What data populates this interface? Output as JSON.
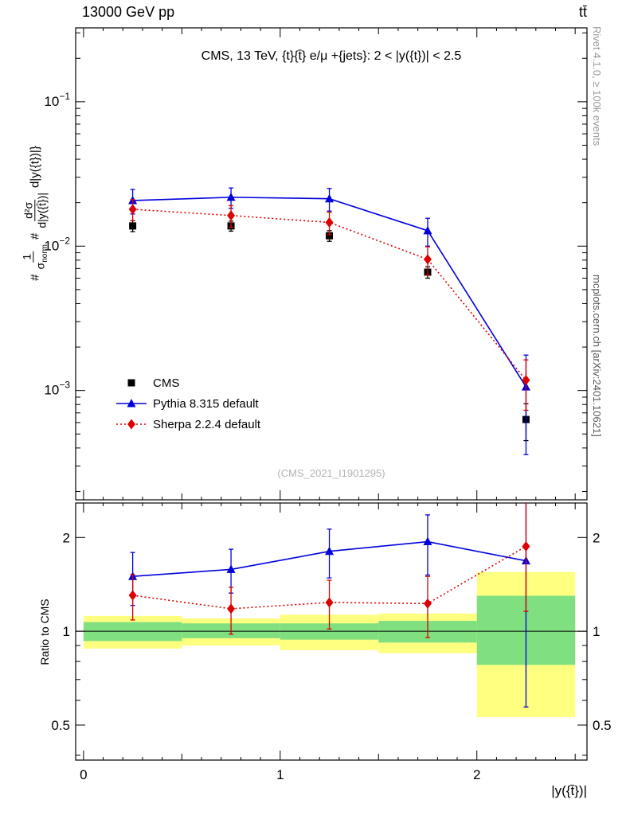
{
  "header": {
    "left": "13000 GeV pp",
    "right": "tt̄"
  },
  "side_notes": {
    "top": "Rivet 4.1.0, ≥ 100k events",
    "bottom": "mcplots.cern.ch [arXiv:2401.10621]"
  },
  "watermark": "(CMS_2021_I1901295)",
  "chart_data": {
    "type": "line",
    "title": "CMS, 13 TeV, {t}{t̄} e/μ +{jets}: 2 < |y({t})| < 2.5",
    "x_label": "|y({t̄})|",
    "ratio_label": "Ratio to CMS",
    "y_label": {
      "hash1": "#",
      "frac1_num": "1",
      "frac1_den_base": "σ",
      "frac1_den_sub": "norm",
      "hash2": "#",
      "frac2_num": "d²σ",
      "frac2_den": "d|y({t̄})|",
      "suffix": "d|y({t})|}"
    },
    "x": [
      0.25,
      0.75,
      1.25,
      1.75,
      2.25
    ],
    "bin_edges": [
      0.0,
      0.5,
      1.0,
      1.5,
      2.0,
      2.5
    ],
    "x_range": [
      -0.04,
      2.56
    ],
    "x_ticks_labeled": [
      0,
      1,
      2
    ],
    "main": {
      "y_scale": "log",
      "y_range": [
        0.000175,
        0.325
      ],
      "y_ticks_labeled_exponents": [
        -1,
        -2,
        -3
      ]
    },
    "ratio": {
      "y_scale": "log",
      "y_range": [
        0.386,
        2.58
      ],
      "y_ticks_labeled": [
        0.5,
        1,
        2
      ],
      "y_ticks_minor": [
        0.4,
        0.6,
        0.7,
        0.8,
        0.9
      ]
    },
    "series": [
      {
        "name": "CMS",
        "marker": "square",
        "color": "#000000",
        "line": "none",
        "is_reference": true,
        "values": [
          0.0138,
          0.0138,
          0.0118,
          0.0066,
          0.00063
        ],
        "errors": [
          0.0012,
          0.0011,
          0.001,
          0.0006,
          0.00018
        ]
      },
      {
        "name": "Pythia 8.315 default",
        "marker": "triangle",
        "color": "#0000dd",
        "line": "solid",
        "is_reference": false,
        "values": [
          0.0207,
          0.0218,
          0.0213,
          0.0128,
          0.00106
        ],
        "errors": [
          0.004,
          0.0035,
          0.0038,
          0.0028,
          0.0007
        ]
      },
      {
        "name": "Sherpa 2.2.4 default",
        "marker": "diamond",
        "color": "#dd0000",
        "line": "dotted",
        "is_reference": false,
        "values": [
          0.018,
          0.0163,
          0.0146,
          0.0081,
          0.00118
        ],
        "errors": [
          0.003,
          0.0028,
          0.0026,
          0.0018,
          0.00045
        ]
      }
    ],
    "ratio_bands": {
      "yellow": {
        "color": "#ffff80",
        "lo": [
          0.88,
          0.9,
          0.87,
          0.85,
          0.53
        ],
        "hi": [
          1.12,
          1.1,
          1.13,
          1.14,
          1.55
        ]
      },
      "green": {
        "color": "#80e080",
        "lo": [
          0.93,
          0.95,
          0.94,
          0.92,
          0.78
        ],
        "hi": [
          1.07,
          1.06,
          1.06,
          1.08,
          1.3
        ]
      }
    }
  }
}
